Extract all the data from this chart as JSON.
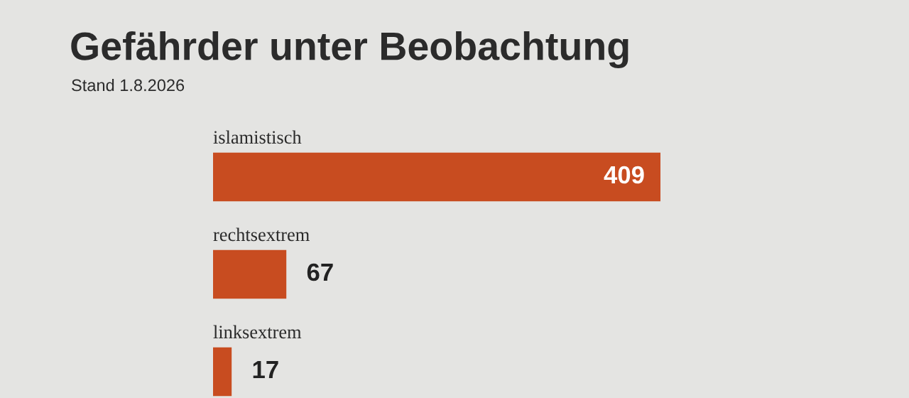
{
  "chart_data": {
    "type": "bar",
    "orientation": "horizontal",
    "title": "Gefährder unter Beobachtung",
    "subtitle": "Stand 1.8.2026",
    "categories": [
      "islamistisch",
      "rechtsextrem",
      "linksextrem"
    ],
    "values": [
      409,
      67,
      17
    ],
    "color": "#c84c20",
    "data_labels": true
  }
}
